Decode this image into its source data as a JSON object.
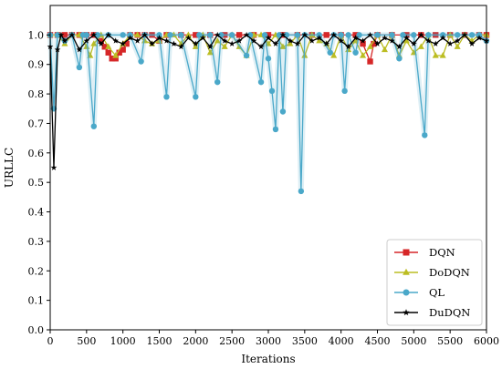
{
  "chart_data": {
    "type": "line",
    "title": "",
    "xlabel": "Iterations",
    "ylabel": "URLLC",
    "xlim": [
      0,
      6000
    ],
    "ylim": [
      0.0,
      1.1
    ],
    "xticks": [
      0,
      500,
      1000,
      1500,
      2000,
      2500,
      3000,
      3500,
      4000,
      4500,
      5000,
      5500,
      6000
    ],
    "yticks": [
      0.0,
      0.1,
      0.2,
      0.3,
      0.4,
      0.5,
      0.6,
      0.7,
      0.8,
      0.9,
      1.0
    ],
    "grid": false,
    "legend_position": "lower-right",
    "series": [
      {
        "name": "DQN",
        "color": "#d62728",
        "marker": "square",
        "points": [
          [
            0,
            1.0
          ],
          [
            100,
            1.0
          ],
          [
            200,
            1.0
          ],
          [
            300,
            1.0
          ],
          [
            400,
            1.0
          ],
          [
            500,
            1.0
          ],
          [
            600,
            1.0
          ],
          [
            700,
            0.98
          ],
          [
            750,
            0.96
          ],
          [
            800,
            0.94
          ],
          [
            850,
            0.92
          ],
          [
            900,
            0.92
          ],
          [
            950,
            0.94
          ],
          [
            1000,
            0.95
          ],
          [
            1050,
            0.97
          ],
          [
            1100,
            1.0
          ],
          [
            1200,
            1.0
          ],
          [
            1300,
            1.0
          ],
          [
            1400,
            1.0
          ],
          [
            1500,
            0.98
          ],
          [
            1600,
            1.0
          ],
          [
            1800,
            1.0
          ],
          [
            2000,
            1.0
          ],
          [
            2200,
            1.0
          ],
          [
            2400,
            1.0
          ],
          [
            2600,
            1.0
          ],
          [
            2800,
            1.0
          ],
          [
            3000,
            1.0
          ],
          [
            3200,
            1.0
          ],
          [
            3400,
            1.0
          ],
          [
            3600,
            1.0
          ],
          [
            3800,
            1.0
          ],
          [
            4000,
            1.0
          ],
          [
            4200,
            1.0
          ],
          [
            4300,
            0.97
          ],
          [
            4400,
            0.91
          ],
          [
            4450,
            0.97
          ],
          [
            4500,
            1.0
          ],
          [
            4700,
            1.0
          ],
          [
            4900,
            1.0
          ],
          [
            5100,
            1.0
          ],
          [
            5300,
            1.0
          ],
          [
            5500,
            1.0
          ],
          [
            5700,
            1.0
          ],
          [
            5900,
            1.0
          ],
          [
            6000,
            1.0
          ]
        ]
      },
      {
        "name": "DoDQN",
        "color": "#bcbd22",
        "marker": "triangle",
        "points": [
          [
            0,
            1.0
          ],
          [
            100,
            1.0
          ],
          [
            200,
            0.97
          ],
          [
            300,
            1.0
          ],
          [
            400,
            1.0
          ],
          [
            500,
            0.96
          ],
          [
            550,
            0.93
          ],
          [
            600,
            0.97
          ],
          [
            700,
            1.0
          ],
          [
            800,
            0.96
          ],
          [
            900,
            0.93
          ],
          [
            1000,
            0.97
          ],
          [
            1100,
            1.0
          ],
          [
            1200,
            1.0
          ],
          [
            1300,
            0.98
          ],
          [
            1400,
            0.97
          ],
          [
            1500,
            0.98
          ],
          [
            1600,
            1.0
          ],
          [
            1700,
            1.0
          ],
          [
            1800,
            0.97
          ],
          [
            1900,
            1.0
          ],
          [
            2000,
            0.96
          ],
          [
            2100,
            1.0
          ],
          [
            2200,
            0.94
          ],
          [
            2300,
            0.98
          ],
          [
            2400,
            0.96
          ],
          [
            2500,
            1.0
          ],
          [
            2600,
            0.96
          ],
          [
            2700,
            0.93
          ],
          [
            2800,
            1.0
          ],
          [
            2900,
            1.0
          ],
          [
            3000,
            0.97
          ],
          [
            3100,
            1.0
          ],
          [
            3200,
            0.96
          ],
          [
            3300,
            0.97
          ],
          [
            3400,
            1.0
          ],
          [
            3500,
            0.93
          ],
          [
            3600,
            1.0
          ],
          [
            3700,
            0.98
          ],
          [
            3800,
            0.97
          ],
          [
            3900,
            0.93
          ],
          [
            4000,
            1.0
          ],
          [
            4100,
            0.95
          ],
          [
            4200,
            0.98
          ],
          [
            4300,
            0.93
          ],
          [
            4400,
            0.96
          ],
          [
            4500,
            1.0
          ],
          [
            4600,
            0.95
          ],
          [
            4700,
            1.0
          ],
          [
            4800,
            0.93
          ],
          [
            4900,
            0.98
          ],
          [
            5000,
            0.94
          ],
          [
            5100,
            0.96
          ],
          [
            5200,
            1.0
          ],
          [
            5300,
            0.93
          ],
          [
            5400,
            0.93
          ],
          [
            5500,
            1.0
          ],
          [
            5600,
            0.96
          ],
          [
            5700,
            1.0
          ],
          [
            5800,
            0.98
          ],
          [
            5900,
            1.0
          ],
          [
            6000,
            1.0
          ]
        ]
      },
      {
        "name": "QL",
        "color": "#4aa8c9",
        "marker": "circle",
        "points": [
          [
            0,
            1.0
          ],
          [
            50,
            0.75
          ],
          [
            100,
            1.0
          ],
          [
            200,
            0.98
          ],
          [
            300,
            1.0
          ],
          [
            400,
            0.89
          ],
          [
            450,
            1.0
          ],
          [
            500,
            1.0
          ],
          [
            600,
            0.69
          ],
          [
            650,
            1.0
          ],
          [
            800,
            1.0
          ],
          [
            1000,
            1.0
          ],
          [
            1100,
            1.0
          ],
          [
            1250,
            0.91
          ],
          [
            1300,
            1.0
          ],
          [
            1500,
            1.0
          ],
          [
            1600,
            0.79
          ],
          [
            1650,
            1.0
          ],
          [
            1800,
            1.0
          ],
          [
            2000,
            0.79
          ],
          [
            2050,
            1.0
          ],
          [
            2200,
            1.0
          ],
          [
            2300,
            0.84
          ],
          [
            2350,
            1.0
          ],
          [
            2500,
            1.0
          ],
          [
            2700,
            0.93
          ],
          [
            2750,
            1.0
          ],
          [
            2900,
            0.84
          ],
          [
            2950,
            1.0
          ],
          [
            3000,
            0.92
          ],
          [
            3050,
            0.81
          ],
          [
            3100,
            0.68
          ],
          [
            3150,
            1.0
          ],
          [
            3200,
            0.74
          ],
          [
            3250,
            1.0
          ],
          [
            3400,
            1.0
          ],
          [
            3450,
            0.47
          ],
          [
            3500,
            1.0
          ],
          [
            3700,
            1.0
          ],
          [
            3850,
            0.94
          ],
          [
            3900,
            1.0
          ],
          [
            4000,
            1.0
          ],
          [
            4050,
            0.81
          ],
          [
            4100,
            1.0
          ],
          [
            4200,
            0.94
          ],
          [
            4250,
            1.0
          ],
          [
            4500,
            1.0
          ],
          [
            4700,
            1.0
          ],
          [
            4800,
            0.92
          ],
          [
            4850,
            1.0
          ],
          [
            5000,
            1.0
          ],
          [
            5150,
            0.66
          ],
          [
            5200,
            1.0
          ],
          [
            5400,
            1.0
          ],
          [
            5600,
            1.0
          ],
          [
            5800,
            1.0
          ],
          [
            5900,
            1.0
          ],
          [
            6000,
            0.98
          ]
        ]
      },
      {
        "name": "DuDQN",
        "color": "#000000",
        "marker": "star",
        "points": [
          [
            0,
            0.96
          ],
          [
            50,
            0.55
          ],
          [
            100,
            0.95
          ],
          [
            150,
            1.0
          ],
          [
            200,
            0.98
          ],
          [
            300,
            1.0
          ],
          [
            400,
            0.95
          ],
          [
            500,
            0.98
          ],
          [
            600,
            1.0
          ],
          [
            700,
            0.97
          ],
          [
            800,
            1.0
          ],
          [
            900,
            0.98
          ],
          [
            1000,
            0.97
          ],
          [
            1100,
            0.99
          ],
          [
            1200,
            0.98
          ],
          [
            1300,
            1.0
          ],
          [
            1400,
            0.97
          ],
          [
            1500,
            0.99
          ],
          [
            1600,
            0.98
          ],
          [
            1700,
            0.97
          ],
          [
            1800,
            0.96
          ],
          [
            1900,
            0.99
          ],
          [
            2000,
            0.97
          ],
          [
            2100,
            0.99
          ],
          [
            2200,
            0.96
          ],
          [
            2300,
            1.0
          ],
          [
            2400,
            0.98
          ],
          [
            2500,
            0.97
          ],
          [
            2600,
            0.98
          ],
          [
            2700,
            1.0
          ],
          [
            2800,
            0.98
          ],
          [
            2900,
            0.96
          ],
          [
            3000,
            0.99
          ],
          [
            3100,
            0.97
          ],
          [
            3200,
            1.0
          ],
          [
            3300,
            0.98
          ],
          [
            3400,
            0.97
          ],
          [
            3500,
            1.0
          ],
          [
            3600,
            0.98
          ],
          [
            3700,
            0.99
          ],
          [
            3800,
            0.97
          ],
          [
            3900,
            1.0
          ],
          [
            4000,
            0.98
          ],
          [
            4100,
            0.96
          ],
          [
            4200,
            0.99
          ],
          [
            4300,
            0.98
          ],
          [
            4400,
            1.0
          ],
          [
            4500,
            0.97
          ],
          [
            4600,
            0.99
          ],
          [
            4700,
            0.98
          ],
          [
            4800,
            0.96
          ],
          [
            4900,
            0.99
          ],
          [
            5000,
            0.97
          ],
          [
            5100,
            1.0
          ],
          [
            5200,
            0.98
          ],
          [
            5300,
            0.97
          ],
          [
            5400,
            0.99
          ],
          [
            5500,
            0.97
          ],
          [
            5600,
            0.98
          ],
          [
            5700,
            1.0
          ],
          [
            5800,
            0.97
          ],
          [
            5900,
            0.99
          ],
          [
            6000,
            0.98
          ]
        ]
      }
    ]
  }
}
